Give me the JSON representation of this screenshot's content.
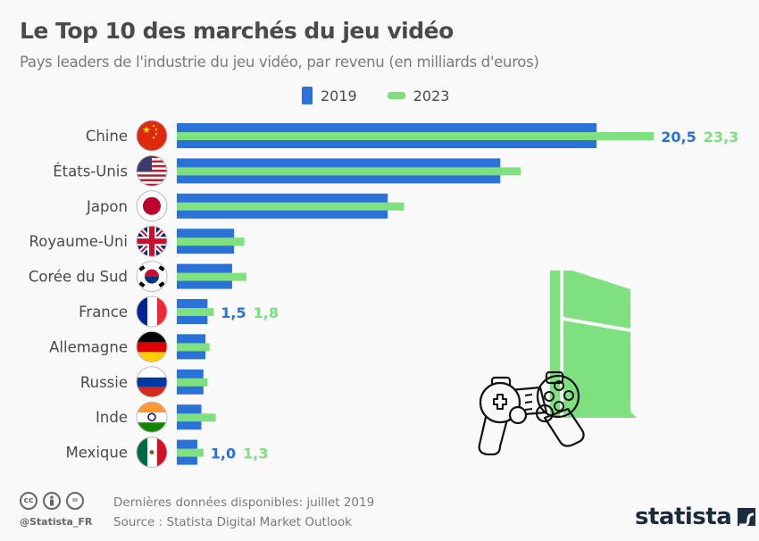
{
  "header": {
    "title": "Le Top 10 des marchés du jeu vidéo",
    "subtitle": "Pays leaders de l'industrie du jeu vidéo, par revenu (en milliards d'euros)"
  },
  "legend": [
    {
      "label": "2019",
      "color": "#2a72d8"
    },
    {
      "label": "2023",
      "color": "#7fe07f"
    }
  ],
  "chart_data": {
    "type": "bar",
    "orientation": "horizontal",
    "title": "Le Top 10 des marchés du jeu vidéo",
    "subtitle": "Pays leaders de l'industrie du jeu vidéo, par revenu (en milliards d'euros)",
    "xlabel": "",
    "ylabel": "",
    "xlim": [
      0,
      25
    ],
    "grid": false,
    "legend_position": "top-center",
    "categories": [
      "Chine",
      "États-Unis",
      "Japon",
      "Royaume-Uni",
      "Corée du Sud",
      "France",
      "Allemagne",
      "Russie",
      "Inde",
      "Mexique"
    ],
    "flags": [
      "flag-china",
      "flag-usa",
      "flag-japan",
      "flag-uk",
      "flag-south-korea",
      "flag-france",
      "flag-germany",
      "flag-russia",
      "flag-india",
      "flag-mexico"
    ],
    "series": [
      {
        "name": "2019",
        "color": "#2a72d8",
        "values": [
          20.5,
          15.8,
          10.3,
          2.8,
          2.7,
          1.5,
          1.4,
          1.3,
          1.2,
          1.0
        ]
      },
      {
        "name": "2023",
        "color": "#7fe07f",
        "values": [
          23.3,
          16.8,
          11.1,
          3.3,
          3.4,
          1.8,
          1.6,
          1.5,
          1.9,
          1.3
        ]
      }
    ],
    "data_labels": [
      {
        "category": "Chine",
        "v2019": "20,5",
        "v2023": "23,3"
      },
      {
        "category": "France",
        "v2019": "1,5",
        "v2023": "1,8"
      },
      {
        "category": "Mexique",
        "v2019": "1,0",
        "v2023": "1,3"
      }
    ]
  },
  "footer": {
    "license_icons": [
      "cc-icon",
      "by-icon",
      "nd-icon"
    ],
    "cc_text": "cc",
    "nd_text": "=",
    "handle": "@Statista_FR",
    "data_note": "Dernières données disponibles: juillet 2019",
    "source": "Source : Statista Digital Market Outlook",
    "brand": "statista"
  }
}
